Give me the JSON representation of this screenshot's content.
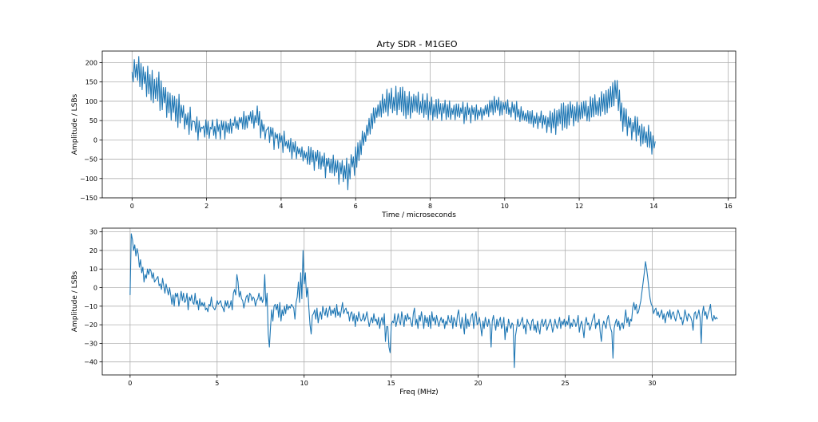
{
  "figure": {
    "title": "Arty SDR - M1GEO"
  },
  "chart_data": [
    {
      "type": "line",
      "title": "Arty SDR - M1GEO",
      "xlabel": "Time / microseconds",
      "ylabel": "Amplitude / LSBs",
      "xlim": [
        -0.8,
        16.2
      ],
      "ylim": [
        -150,
        230
      ],
      "xticks": [
        0,
        2,
        4,
        6,
        8,
        10,
        12,
        14,
        16
      ],
      "yticks": [
        -150,
        -100,
        -50,
        0,
        50,
        100,
        150,
        200
      ],
      "grid": true,
      "color": "#1f77b4",
      "series": [
        {
          "x_start": 0,
          "x_step": 0.03,
          "values": [
            176,
            150,
            208,
            162,
            196,
            154,
            216,
            138,
            198,
            130,
            189,
            146,
            176,
            112,
            191,
            119,
            169,
            103,
            180,
            96,
            157,
            107,
            161,
            101,
            176,
            76,
            153,
            78,
            136,
            96,
            136,
            58,
            124,
            70,
            121,
            51,
            115,
            71,
            113,
            48,
            106,
            32,
            118,
            44,
            90,
            58,
            89,
            28,
            67,
            39,
            70,
            14,
            85,
            25,
            49,
            48,
            47,
            20,
            60,
            -1,
            49,
            20,
            33,
            30,
            36,
            7,
            52,
            14,
            48,
            4,
            33,
            28,
            52,
            12,
            35,
            3,
            54,
            22,
            40,
            2,
            50,
            26,
            48,
            2,
            47,
            20,
            43,
            17,
            54,
            17,
            44,
            37,
            60,
            30,
            49,
            27,
            58,
            44,
            58,
            28,
            74,
            27,
            62,
            31,
            64,
            50,
            73,
            43,
            76,
            30,
            63,
            45,
            88,
            38,
            74,
            5,
            52,
            22,
            40,
            2,
            25,
            28,
            34,
            -7,
            33,
            9,
            31,
            -25,
            19,
            4,
            15,
            -22,
            17,
            -6,
            11,
            -33,
            23,
            -16,
            -4,
            -22,
            -1,
            -31,
            4,
            -49,
            -6,
            -31,
            -4,
            -49,
            -18,
            -36,
            -22,
            -44,
            -18,
            -55,
            -28,
            -47,
            -32,
            -63,
            -17,
            -64,
            -19,
            -57,
            -27,
            -79,
            -31,
            -55,
            -27,
            -75,
            -31,
            -76,
            -42,
            -68,
            -34,
            -98,
            -48,
            -68,
            -47,
            -85,
            -50,
            -86,
            -39,
            -93,
            -53,
            -84,
            -53,
            -115,
            -59,
            -88,
            -53,
            -108,
            -67,
            -100,
            -47,
            -129,
            -62,
            -101,
            -38,
            -70,
            -44,
            -92,
            -18,
            -71,
            -7,
            -54,
            -2,
            -38,
            23,
            -14,
            19,
            -4,
            38,
            12,
            56,
            15,
            68,
            29,
            83,
            44,
            83,
            58,
            91,
            61,
            101,
            59,
            118,
            69,
            106,
            72,
            131,
            62,
            121,
            81,
            134,
            70,
            110,
            76,
            139,
            65,
            123,
            78,
            136,
            73,
            137,
            63,
            126,
            55,
            113,
            65,
            125,
            56,
            112,
            71,
            118,
            75,
            114,
            71,
            124,
            66,
            99,
            70,
            119,
            58,
            103,
            66,
            120,
            52,
            98,
            65,
            111,
            51,
            92,
            60,
            105,
            56,
            106,
            67,
            94,
            50,
            94,
            69,
            103,
            53,
            92,
            59,
            101,
            53,
            82,
            66,
            90,
            52,
            93,
            61,
            93,
            58,
            83,
            68,
            98,
            42,
            85,
            51,
            96,
            66,
            83,
            44,
            89,
            66,
            84,
            50,
            91,
            53,
            77,
            63,
            84,
            52,
            80,
            64,
            89,
            67,
            92,
            60,
            102,
            72,
            102,
            65,
            113,
            71,
            103,
            77,
            110,
            63,
            100,
            65,
            97,
            79,
            98,
            68,
            104,
            66,
            84,
            59,
            98,
            71,
            92,
            52,
            100,
            59,
            79,
            47,
            86,
            52,
            75,
            51,
            69,
            48,
            76,
            43,
            74,
            42,
            76,
            33,
            62,
            43,
            70,
            29,
            61,
            45,
            75,
            30,
            64,
            40,
            62,
            19,
            58,
            34,
            75,
            18,
            70,
            31,
            80,
            14,
            76,
            36,
            79,
            42,
            94,
            25,
            96,
            32,
            88,
            29,
            92,
            38,
            99,
            57,
            91,
            36,
            86,
            49,
            98,
            46,
            90,
            54,
            97,
            56,
            100,
            62,
            101,
            49,
            87,
            48,
            112,
            59,
            108,
            60,
            117,
            66,
            99,
            63,
            109,
            62,
            125,
            74,
            119,
            66,
            128,
            70,
            131,
            83,
            138,
            86,
            148,
            88,
            154,
            107,
            154,
            76,
            129,
            49,
            96,
            22,
            83,
            35,
            80,
            11,
            60,
            32,
            56,
            0,
            45,
            21,
            61,
            -3,
            59,
            12,
            36,
            -16,
            41,
            -10,
            34,
            -7,
            21,
            -18,
            38,
            -20,
            21,
            -37,
            11,
            -21,
            -4
          ]
        }
      ]
    },
    {
      "type": "line",
      "xlabel": "Freq (MHz)",
      "ylabel": "Amplitude / LSBs",
      "xlim": [
        -1.6,
        34.8
      ],
      "ylim": [
        -47,
        32
      ],
      "xticks": [
        0,
        5,
        10,
        15,
        20,
        25,
        30
      ],
      "yticks": [
        -40,
        -30,
        -20,
        -10,
        0,
        10,
        20,
        30
      ],
      "grid": true,
      "color": "#1f77b4",
      "series": [
        {
          "x_start": 0,
          "x_step": 0.0667,
          "values": [
            -4,
            29,
            26,
            20,
            23,
            17,
            21,
            18,
            11,
            15,
            8,
            11,
            3,
            7,
            5,
            10,
            7,
            10,
            9,
            5,
            8,
            3,
            4,
            5,
            6,
            1,
            2,
            -1,
            5,
            1,
            -3,
            2,
            -1,
            -4,
            0,
            -4,
            -9,
            -4,
            -10,
            -3,
            -5,
            -3,
            -10,
            -6,
            -2,
            -7,
            -3,
            -8,
            -7,
            -3,
            -12,
            -5,
            -7,
            -4,
            -8,
            -9,
            -3,
            -9,
            -7,
            -12,
            -6,
            -10,
            -8,
            -10,
            -8,
            -12,
            -11,
            -13,
            -9,
            -10,
            -5,
            -10,
            -11,
            -12,
            -10,
            -7,
            -9,
            -8,
            -7,
            -10,
            -11,
            -13,
            -7,
            -10,
            -7,
            -11,
            -10,
            -7,
            -12,
            -3,
            -1,
            -4,
            7,
            3,
            -5,
            -2,
            -6,
            -7,
            -11,
            -8,
            -5,
            -4,
            -8,
            -3,
            -4,
            -7,
            -5,
            -6,
            -10,
            -7,
            -6,
            -3,
            -7,
            -5,
            -8,
            -6,
            7,
            -10,
            -3,
            -25,
            -32,
            -21,
            -12,
            -18,
            -10,
            -9,
            -12,
            -9,
            -16,
            -8,
            -18,
            -12,
            -15,
            -10,
            -14,
            -9,
            -12,
            -10,
            -11,
            -9,
            -10,
            -11,
            -17,
            -8,
            -5,
            3,
            -8,
            8,
            -6,
            20,
            2,
            8,
            -5,
            0,
            -11,
            -20,
            -25,
            -15,
            -14,
            -12,
            -17,
            -11,
            -19,
            -15,
            -13,
            -17,
            -10,
            -13,
            -15,
            -11,
            -16,
            -13,
            -10,
            -15,
            -12,
            -14,
            -11,
            -16,
            -9,
            -15,
            -13,
            -16,
            -12,
            -8,
            -14,
            -12,
            -11,
            -14,
            -13,
            -18,
            -14,
            -13,
            -18,
            -14,
            -21,
            -15,
            -18,
            -13,
            -16,
            -18,
            -17,
            -14,
            -18,
            -16,
            -13,
            -17,
            -21,
            -18,
            -16,
            -19,
            -14,
            -18,
            -17,
            -20,
            -16,
            -22,
            -18,
            -16,
            -20,
            -14,
            -29,
            -21,
            -21,
            -32,
            -35,
            -20,
            -18,
            -19,
            -14,
            -21,
            -18,
            -14,
            -18,
            -20,
            -13,
            -17,
            -21,
            -15,
            -18,
            -14,
            -17,
            -16,
            -19,
            -21,
            -14,
            -11,
            -20,
            -17,
            -22,
            -15,
            -18,
            -13,
            -17,
            -22,
            -15,
            -19,
            -16,
            -21,
            -15,
            -22,
            -13,
            -18,
            -16,
            -20,
            -15,
            -18,
            -21,
            -18,
            -16,
            -19,
            -17,
            -22,
            -18,
            -20,
            -15,
            -18,
            -19,
            -15,
            -22,
            -16,
            -18,
            -21,
            -15,
            -12,
            -18,
            -22,
            -16,
            -20,
            -25,
            -14,
            -22,
            -17,
            -21,
            -18,
            -15,
            -14,
            -22,
            -16,
            -13,
            -20,
            -19,
            -16,
            -21,
            -26,
            -18,
            -22,
            -16,
            -19,
            -21,
            -17,
            -20,
            -32,
            -18,
            -15,
            -19,
            -23,
            -17,
            -21,
            -18,
            -16,
            -22,
            -20,
            -16,
            -28,
            -21,
            -24,
            -17,
            -20,
            -22,
            -19,
            -20,
            -43,
            -26,
            -22,
            -17,
            -21,
            -20,
            -18,
            -16,
            -22,
            -20,
            -25,
            -17,
            -19,
            -20,
            -23,
            -18,
            -17,
            -23,
            -20,
            -24,
            -18,
            -22,
            -25,
            -19,
            -17,
            -21,
            -19,
            -17,
            -23,
            -21,
            -19,
            -17,
            -20,
            -24,
            -21,
            -17,
            -20,
            -22,
            -19,
            -16,
            -22,
            -18,
            -20,
            -17,
            -21,
            -18,
            -20,
            -15,
            -22,
            -19,
            -21,
            -17,
            -18,
            -21,
            -19,
            -15,
            -24,
            -20,
            -18,
            -22,
            -27,
            -19,
            -16,
            -20,
            -19,
            -23,
            -21,
            -18,
            -16,
            -14,
            -22,
            -19,
            -20,
            -17,
            -24,
            -29,
            -21,
            -18,
            -20,
            -22,
            -17,
            -15,
            -19,
            -22,
            -24,
            -38,
            -22,
            -19,
            -17,
            -21,
            -18,
            -23,
            -20,
            -19,
            -22,
            -17,
            -12,
            -19,
            -16,
            -21,
            -17,
            -18,
            -11,
            -8,
            -12,
            -9,
            -14,
            -13,
            -10,
            -7,
            -2,
            3,
            8,
            14,
            10,
            5,
            -1,
            -6,
            -9,
            -10,
            -14,
            -12,
            -11,
            -15,
            -13,
            -16,
            -14,
            -12,
            -17,
            -14,
            -19,
            -15,
            -13,
            -16,
            -12,
            -17,
            -14,
            -13,
            -16,
            -18,
            -15,
            -12,
            -14,
            -17,
            -16,
            -20,
            -17,
            -12,
            -15,
            -18,
            -14,
            -15,
            -16,
            -18,
            -23,
            -14,
            -13,
            -17,
            -15,
            -12,
            -16,
            -30,
            -14,
            -10,
            -15,
            -13,
            -17,
            -14,
            -12,
            -9,
            -16,
            -18,
            -15,
            -17,
            -16,
            -17
          ]
        }
      ]
    }
  ]
}
